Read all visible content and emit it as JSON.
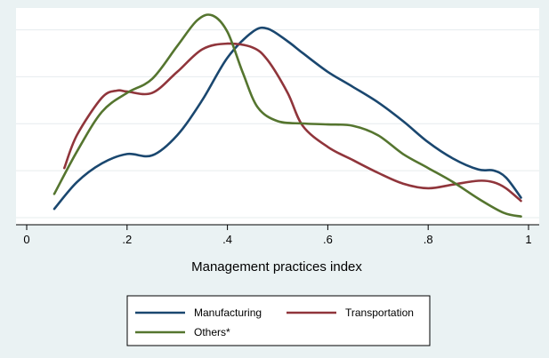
{
  "chart_data": {
    "type": "line",
    "xlabel": "Management practices index",
    "ylabel": "",
    "xlim": [
      0,
      1
    ],
    "ylim": [
      0,
      4.2
    ],
    "grid": true,
    "legend_position": "bottom",
    "x_ticks": [
      0,
      0.2,
      0.4,
      0.6,
      0.8,
      1
    ],
    "x_tick_labels": [
      "0",
      ".2",
      ".4",
      ".6",
      ".8",
      "1"
    ],
    "y_ticks": [
      0,
      1,
      2,
      3,
      4
    ],
    "series": [
      {
        "name": "Manufacturing",
        "color": "#1a476f",
        "x": [
          0.055,
          0.1,
          0.15,
          0.2,
          0.25,
          0.3,
          0.35,
          0.4,
          0.45,
          0.48,
          0.52,
          0.55,
          0.6,
          0.65,
          0.7,
          0.75,
          0.8,
          0.85,
          0.9,
          0.93,
          0.955,
          0.985
        ],
        "y": [
          0.28,
          0.85,
          1.25,
          1.45,
          1.42,
          1.85,
          2.6,
          3.5,
          4.05,
          4.12,
          3.85,
          3.6,
          3.2,
          2.88,
          2.55,
          2.15,
          1.7,
          1.35,
          1.12,
          1.1,
          0.95,
          0.52
        ]
      },
      {
        "name": "Transportation",
        "color": "#90353b",
        "x": [
          0.075,
          0.1,
          0.15,
          0.18,
          0.2,
          0.25,
          0.3,
          0.35,
          0.4,
          0.45,
          0.48,
          0.52,
          0.55,
          0.6,
          0.65,
          0.7,
          0.75,
          0.8,
          0.85,
          0.9,
          0.93,
          0.955,
          0.985
        ],
        "y": [
          1.15,
          1.85,
          2.65,
          2.8,
          2.78,
          2.75,
          3.2,
          3.68,
          3.8,
          3.72,
          3.45,
          2.75,
          2.05,
          1.6,
          1.32,
          1.05,
          0.82,
          0.72,
          0.8,
          0.88,
          0.85,
          0.72,
          0.45
        ]
      },
      {
        "name": "Others*",
        "color": "#55752f",
        "x": [
          0.055,
          0.1,
          0.15,
          0.2,
          0.25,
          0.3,
          0.34,
          0.37,
          0.4,
          0.43,
          0.46,
          0.5,
          0.55,
          0.6,
          0.65,
          0.7,
          0.75,
          0.8,
          0.85,
          0.9,
          0.95,
          0.985
        ],
        "y": [
          0.6,
          1.5,
          2.35,
          2.75,
          3.05,
          3.75,
          4.3,
          4.4,
          4.05,
          3.2,
          2.45,
          2.15,
          2.1,
          2.08,
          2.05,
          1.85,
          1.45,
          1.15,
          0.85,
          0.5,
          0.2,
          0.12
        ]
      }
    ]
  }
}
